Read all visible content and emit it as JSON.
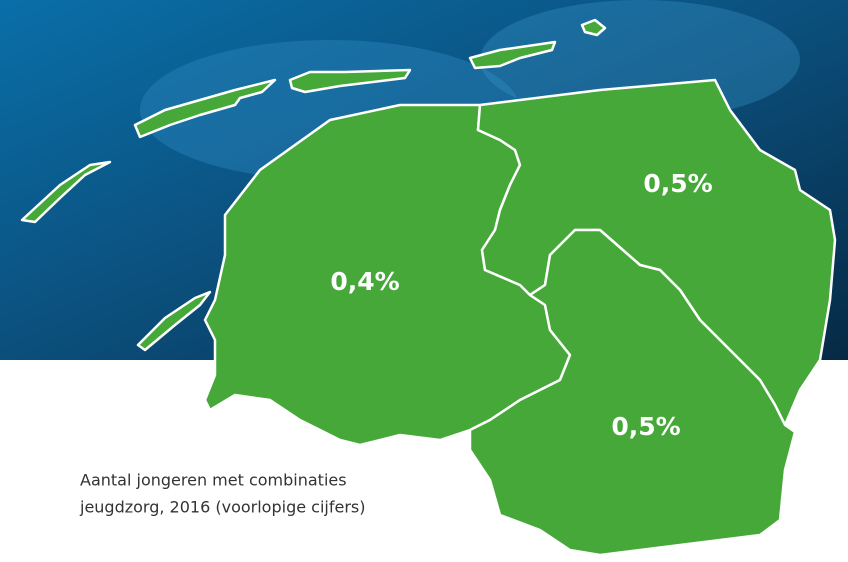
{
  "regions": [
    {
      "label": "0,4%"
    },
    {
      "label": "0,5%"
    },
    {
      "label": "0,5%"
    }
  ],
  "caption": {
    "lines": [
      "Aantal jongeren met combinaties",
      "jeugdzorg, 2016 (voorlopige cijfers)"
    ]
  }
}
